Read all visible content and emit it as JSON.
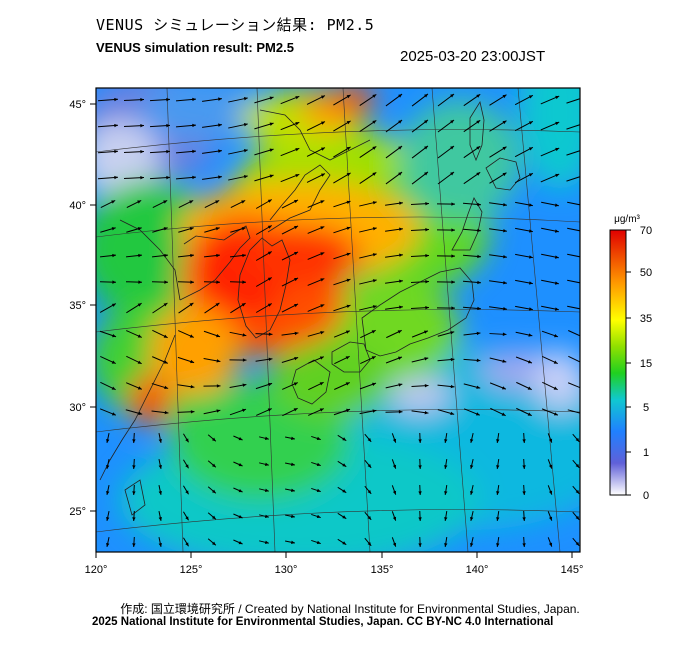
{
  "header": {
    "title_jp": "VENUS シミュレーション結果: PM2.5",
    "title_en": "VENUS simulation result: PM2.5",
    "timestamp": "2025-03-20 23:00JST"
  },
  "map": {
    "lon_ticks": [
      "120°",
      "125°",
      "130°",
      "135°",
      "140°",
      "145°"
    ],
    "lat_ticks": [
      "45°",
      "40°",
      "35°",
      "30°",
      "25°"
    ]
  },
  "colorbar": {
    "unit": "μg/m³",
    "tick_labels": [
      "70",
      "50",
      "35",
      "15",
      "5",
      "1",
      "0"
    ],
    "colors": {
      "c0": "#ffffff",
      "c1": "#5a5ad8",
      "c5": "#1e90ff",
      "c10": "#10d0d0",
      "c15": "#20d020",
      "c25": "#9ee000",
      "c35": "#ffff00",
      "c50": "#ff9900",
      "c70": "#e00000"
    }
  },
  "footer": {
    "credit": "作成: 国立環境研究所 / Created by National Institute for Environmental Studies, Japan.",
    "license": "2025 National Institute for Environmental Studies, Japan. CC BY-NC 4.0 International"
  }
}
